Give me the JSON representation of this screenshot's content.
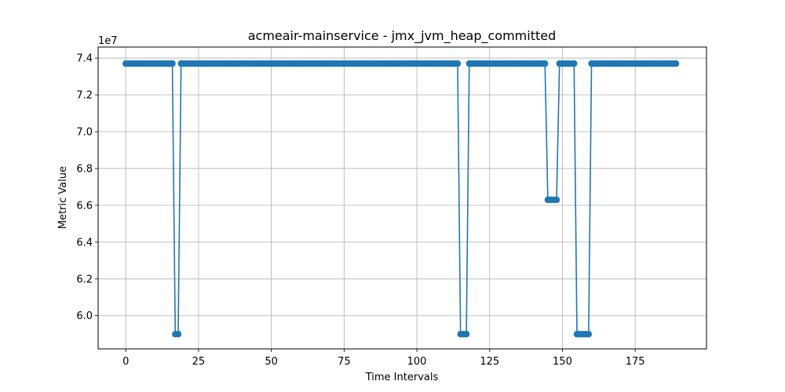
{
  "chart_data": {
    "type": "line",
    "title": "acmeair-mainservice - jmx_jvm_heap_committed",
    "xlabel": "Time Intervals",
    "ylabel": "Metric Value",
    "y_offset_label": "1e7",
    "xlim": [
      -9.5,
      199.5
    ],
    "ylim": [
      5.82,
      7.46
    ],
    "x_ticks": [
      0,
      25,
      50,
      75,
      100,
      125,
      150,
      175
    ],
    "x_tick_labels": [
      "0",
      "25",
      "50",
      "75",
      "100",
      "125",
      "150",
      "175"
    ],
    "y_ticks": [
      6.0,
      6.2,
      6.4,
      6.6,
      6.8,
      7.0,
      7.2,
      7.4
    ],
    "y_tick_labels": [
      "6.0",
      "6.2",
      "6.4",
      "6.6",
      "6.8",
      "7.0",
      "7.2",
      "7.4"
    ],
    "grid": true,
    "color": "#1f77b4",
    "marker": "circle",
    "series": [
      {
        "x_range": [
          0,
          189
        ],
        "baseline": 7.37,
        "dips": [
          {
            "x": [
              17,
              18
            ],
            "value": 5.9
          },
          {
            "x": [
              115,
              116,
              117
            ],
            "value": 5.9
          },
          {
            "x": [
              145,
              146,
              147,
              148
            ],
            "value": 6.63
          },
          {
            "x": [
              155,
              156,
              157,
              158,
              159
            ],
            "value": 5.9
          }
        ]
      }
    ]
  }
}
